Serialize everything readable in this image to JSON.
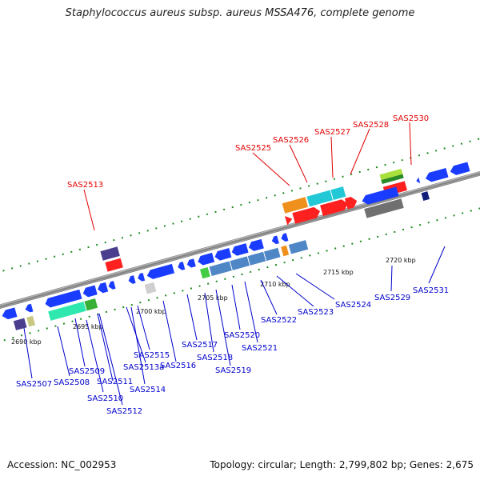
{
  "title": "Staphylococcus aureus subsp. aureus MSSA476, complete genome",
  "footer": {
    "accession": "Accession: NC_002953",
    "topology": "Topology: circular; Length: 2,799,802 bp; Genes: 2,675"
  },
  "kbp_labels": [
    "2690 kbp",
    "2695 kbp",
    "2700 kbp",
    "2705 kbp",
    "2710 kbp",
    "2715 kbp",
    "2720 kbp"
  ],
  "gene_labels_top": [
    "SAS2513",
    "SAS2525",
    "SAS2526",
    "SAS2527",
    "SAS2528",
    "SAS2530"
  ],
  "gene_labels_bottom": [
    "SAS2507",
    "SAS2508",
    "SAS2509",
    "SAS2510",
    "SAS2511",
    "SAS2512",
    "SAS2513a",
    "SAS2514",
    "SAS2515",
    "SAS2516",
    "SAS2517",
    "SAS2518",
    "SAS2519",
    "SAS2520",
    "SAS2521",
    "SAS2522",
    "SAS2523",
    "SAS2524",
    "SAS2529",
    "SAS2531"
  ],
  "colors": {
    "backbone": "#8a8a8a",
    "forward_cds": "#1a3cff",
    "reverse_cds": "#1a3cff",
    "rna_red": "#ff0000",
    "label_red": "#e00000",
    "label_blue": "#0000cc",
    "tick_green": "#1f8a1f"
  }
}
